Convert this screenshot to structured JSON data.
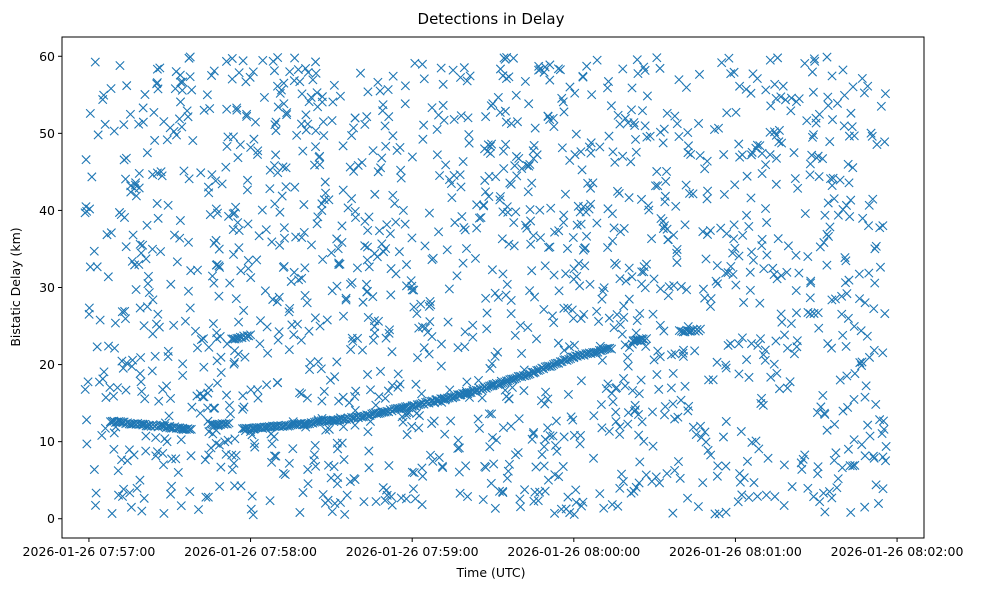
{
  "chart_data": {
    "type": "scatter",
    "title": "Detections in Delay",
    "xlabel": "Time (UTC)",
    "ylabel": "Bistatic Delay (km)",
    "marker": "x",
    "marker_color": "#1f77b4",
    "grid": false,
    "legend": "none",
    "xlim": [
      "2026-01-26 07:56:50",
      "2026-01-26 08:02:10"
    ],
    "ylim": [
      -2.5,
      62.5
    ],
    "xticks": [
      "2026-01-26 07:57:00",
      "2026-01-26 07:58:00",
      "2026-01-26 07:59:00",
      "2026-01-26 08:00:00",
      "2026-01-26 08:01:00",
      "2026-01-26 08:02:00"
    ],
    "yticks": [
      "0",
      "10",
      "20",
      "30",
      "40",
      "50",
      "60"
    ],
    "clutter": {
      "description_of_source": "uniformly scattered false detections across the plot",
      "time_range": [
        "2026-01-26 07:56:58",
        "2026-01-26 08:01:56"
      ],
      "delay_range_km": [
        0.5,
        60
      ],
      "count": 1600
    },
    "tracks": [
      {
        "points": [
          [
            "2026-01-26 07:57:08",
            12.6
          ],
          [
            "2026-01-26 07:57:20",
            12.2
          ],
          [
            "2026-01-26 07:57:30",
            11.9
          ],
          [
            "2026-01-26 07:57:38",
            11.5
          ]
        ]
      },
      {
        "points": [
          [
            "2026-01-26 07:57:45",
            12.2
          ],
          [
            "2026-01-26 07:57:52",
            12.4
          ]
        ]
      },
      {
        "points": [
          [
            "2026-01-26 07:57:57",
            11.6
          ],
          [
            "2026-01-26 07:58:20",
            12.3
          ],
          [
            "2026-01-26 07:58:40",
            13.2
          ],
          [
            "2026-01-26 07:59:00",
            14.6
          ],
          [
            "2026-01-26 07:59:15",
            15.8
          ],
          [
            "2026-01-26 07:59:30",
            17.3
          ],
          [
            "2026-01-26 07:59:45",
            19.0
          ],
          [
            "2026-01-26 08:00:00",
            21.0
          ],
          [
            "2026-01-26 08:00:14",
            22.1
          ]
        ]
      },
      {
        "points": [
          [
            "2026-01-26 07:57:53",
            23.3
          ],
          [
            "2026-01-26 07:58:00",
            23.8
          ]
        ]
      },
      {
        "points": [
          [
            "2026-01-26 08:00:22",
            23.0
          ],
          [
            "2026-01-26 08:00:27",
            23.3
          ]
        ]
      },
      {
        "points": [
          [
            "2026-01-26 08:00:40",
            24.3
          ],
          [
            "2026-01-26 08:00:47",
            24.5
          ]
        ]
      }
    ]
  }
}
